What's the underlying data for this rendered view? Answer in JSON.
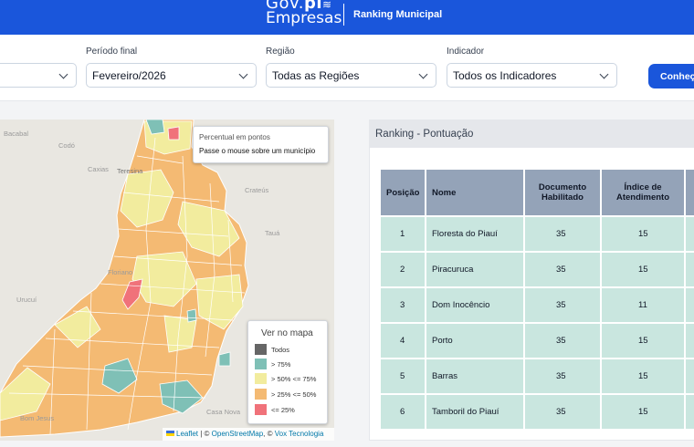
{
  "header": {
    "logo_line1_prefix": "Gov.",
    "logo_line1_bold": "pi",
    "logo_line2": "Empresas",
    "app_title": "Ranking Municipal"
  },
  "filters": {
    "periodo_final": {
      "label": "Período final",
      "value": "Fevereiro/2026"
    },
    "regiao": {
      "label": "Região",
      "value": "Todas as Regiões"
    },
    "indicador": {
      "label": "Indicador",
      "value": "Todos os Indicadores"
    },
    "button_label": "Conheça"
  },
  "map": {
    "tooltip_title": "Percentual em pontos",
    "tooltip_hint": "Passe o mouse sobre um município",
    "place_labels": [
      "Bacabal",
      "Codó",
      "Caxias",
      "Teresina",
      "Crateús",
      "Tauá",
      "Floriano",
      "Bom Jesus",
      "Casa Nova",
      "Urucuí"
    ],
    "legend": {
      "title": "Ver no mapa",
      "items": [
        {
          "label": "Todos",
          "color": "#666666"
        },
        {
          "label": "> 75%",
          "color": "#7fc0b6"
        },
        {
          "label": "> 50% <= 75%",
          "color": "#f2ec9e"
        },
        {
          "label": "> 25% <= 50%",
          "color": "#f4ba73"
        },
        {
          "label": "<= 25%",
          "color": "#f0727a"
        }
      ]
    },
    "attribution": {
      "leaflet": "Leaflet",
      "sep1": " | © ",
      "osm": "OpenStreetMap",
      "sep2": ", © ",
      "vox": "Vox Tecnologia"
    }
  },
  "ranking": {
    "title": "Ranking - Pontuação",
    "columns": [
      "Posição",
      "Nome",
      "Documento Habilitado",
      "Índice de Atendimento"
    ],
    "rows": [
      {
        "pos": "1",
        "nome": "Floresta do Piauí",
        "doc": "35",
        "indice": "15"
      },
      {
        "pos": "2",
        "nome": "Piracuruca",
        "doc": "35",
        "indice": "15"
      },
      {
        "pos": "3",
        "nome": "Dom Inocêncio",
        "doc": "35",
        "indice": "11"
      },
      {
        "pos": "4",
        "nome": "Porto",
        "doc": "35",
        "indice": "15"
      },
      {
        "pos": "5",
        "nome": "Barras",
        "doc": "35",
        "indice": "15"
      },
      {
        "pos": "6",
        "nome": "Tamboril do Piauí",
        "doc": "35",
        "indice": "15"
      }
    ]
  }
}
